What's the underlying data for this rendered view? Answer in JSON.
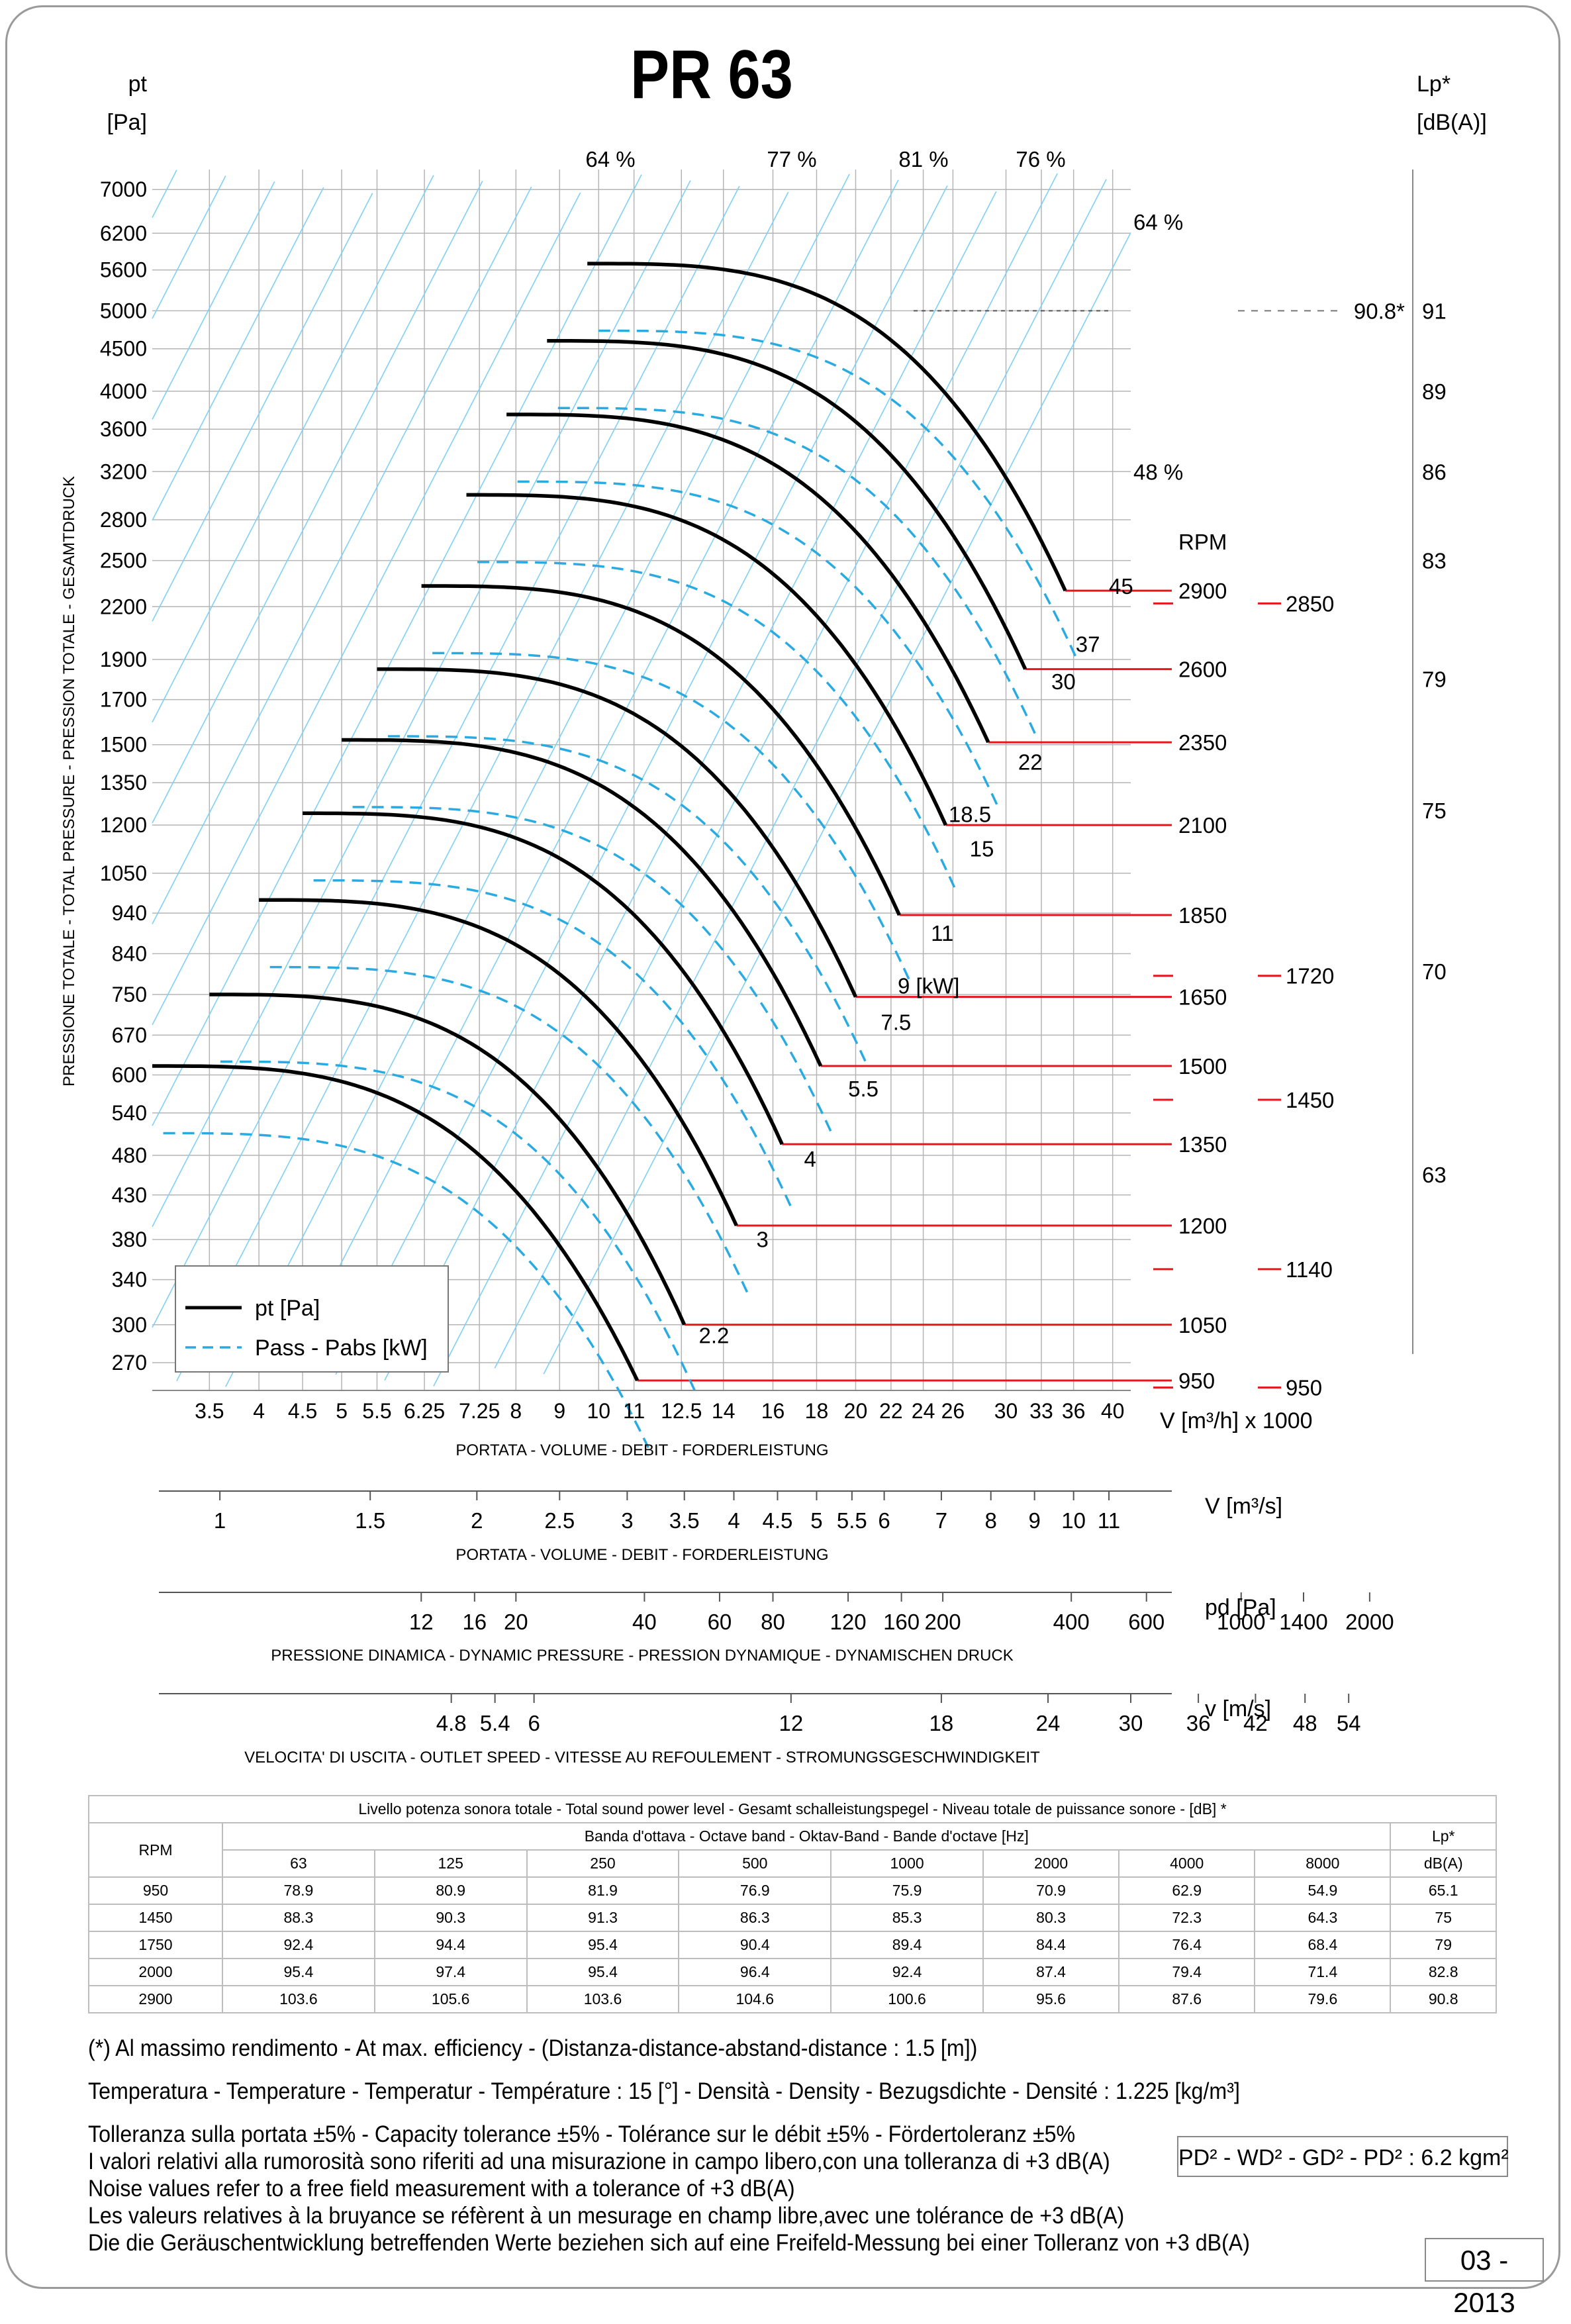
{
  "title": "PR 63",
  "chart_data": {
    "type": "line",
    "title": "PR 63",
    "ylabel_unit": "pt\n[Pa]",
    "ylabel_side": "PRESSIONE TOTALE - TOTAL PRESSURE - PRESSION TOTALE - GESAMTDRUCK",
    "right_unit": "Lp*\n[dB(A)]",
    "x_unit": "V [m³/h]  x 1000",
    "x_caption": "PORTATA - VOLUME - DEBIT - FORDERLEISTUNG",
    "y_scale": "log",
    "x_scale": "log",
    "xlim": [
      3.0,
      42
    ],
    "ylim": [
      250,
      7400
    ],
    "y_ticks": [
      270,
      300,
      340,
      380,
      430,
      480,
      540,
      600,
      670,
      750,
      840,
      940,
      1050,
      1200,
      1350,
      1500,
      1700,
      1900,
      2200,
      2500,
      2800,
      3200,
      3600,
      4000,
      4500,
      5000,
      5600,
      6200,
      7000
    ],
    "x_ticks": [
      "3.5",
      "4",
      "4.5",
      "5",
      "5.5",
      "6.25",
      "7.25",
      "8",
      "9",
      "10",
      "11",
      "12.5",
      "14",
      "16",
      "18",
      "20",
      "22",
      "24",
      "26",
      "30",
      "33",
      "36",
      "40"
    ],
    "lp_ticks": [
      {
        "pt": 5000,
        "label": "91"
      },
      {
        "pt": 4000,
        "label": "89"
      },
      {
        "pt": 3200,
        "label": "86"
      },
      {
        "pt": 2500,
        "label": "83"
      },
      {
        "pt": 1800,
        "label": "79"
      },
      {
        "pt": 1250,
        "label": "75"
      },
      {
        "pt": 800,
        "label": "70"
      },
      {
        "pt": 455,
        "label": "63"
      }
    ],
    "lp_marker": {
      "pt": 5000,
      "label": "90.8*"
    },
    "efficiency_labels_top": [
      "64 %",
      "77 %",
      "81 %",
      "76 %"
    ],
    "efficiency_labels_right": [
      {
        "pt": 6400,
        "label": "64 %"
      },
      {
        "pt": 3200,
        "label": "48 %"
      }
    ],
    "grid": true,
    "legend": {
      "position": "bottom-left",
      "entries": [
        "pt [Pa]",
        "Pass - Pabs [kW]"
      ]
    },
    "rpm_title": "RPM",
    "rpm_curves": [
      {
        "rpm": "950",
        "shutoff": [
          3.0,
          615
        ],
        "max": [
          11.1,
          257
        ]
      },
      {
        "rpm": "1050",
        "shutoff": [
          3.5,
          750
        ],
        "max": [
          12.6,
          300
        ]
      },
      {
        "rpm": "1200",
        "shutoff": [
          4.0,
          975
        ],
        "max": [
          14.5,
          395
        ]
      },
      {
        "rpm": "1350",
        "shutoff": [
          4.5,
          1240
        ],
        "max": [
          16.4,
          495
        ]
      },
      {
        "rpm": "1500",
        "shutoff": [
          5.0,
          1520
        ],
        "max": [
          18.2,
          615
        ]
      },
      {
        "rpm": "1650",
        "shutoff": [
          5.5,
          1850
        ],
        "max": [
          20.0,
          745
        ]
      },
      {
        "rpm": "1850",
        "shutoff": [
          6.2,
          2330
        ],
        "max": [
          22.5,
          935
        ]
      },
      {
        "rpm": "2100",
        "shutoff": [
          7.0,
          3000
        ],
        "max": [
          25.5,
          1200
        ]
      },
      {
        "rpm": "2350",
        "shutoff": [
          7.8,
          3750
        ],
        "max": [
          28.6,
          1510
        ]
      },
      {
        "rpm": "2600",
        "shutoff": [
          8.7,
          4600
        ],
        "max": [
          31.6,
          1850
        ]
      },
      {
        "rpm": "2900",
        "shutoff": [
          9.7,
          5700
        ],
        "max": [
          35.2,
          2300
        ]
      }
    ],
    "rpm_extra_labels": [
      {
        "pt": 2220,
        "label": "2850"
      },
      {
        "pt": 790,
        "label": "1720"
      },
      {
        "pt": 560,
        "label": "1450"
      },
      {
        "pt": 350,
        "label": "1140"
      },
      {
        "pt": 252,
        "label": "950"
      }
    ],
    "power_labels": [
      {
        "label": "2.2",
        "x": 13.1,
        "y": 285
      },
      {
        "label": "3",
        "x": 15.3,
        "y": 372
      },
      {
        "label": "4",
        "x": 17.4,
        "y": 465
      },
      {
        "label": "5.5",
        "x": 19.6,
        "y": 565
      },
      {
        "label": "7.5",
        "x": 21.4,
        "y": 680
      },
      {
        "label": "9  [kW]",
        "x": 22.4,
        "y": 752
      },
      {
        "label": "11",
        "x": 24.5,
        "y": 870
      },
      {
        "label": "15",
        "x": 27.2,
        "y": 1100
      },
      {
        "label": "18.5",
        "x": 25.7,
        "y": 1210
      },
      {
        "label": "22",
        "x": 31.0,
        "y": 1400
      },
      {
        "label": "30",
        "x": 33.9,
        "y": 1750
      },
      {
        "label": "37",
        "x": 36.2,
        "y": 1940
      },
      {
        "label": "45",
        "x": 39.6,
        "y": 2280
      }
    ],
    "v_ms_axis": {
      "label": "V  [m³/s]",
      "ticks": [
        "1",
        "1.5",
        "2",
        "2.5",
        "3",
        "3.5",
        "4",
        "4.5",
        "5",
        "5.5",
        "6",
        "7",
        "8",
        "9",
        "10",
        "11"
      ]
    },
    "pd_axis": {
      "label": "pd  [Pa]",
      "caption": "PRESSIONE DINAMICA - DYNAMIC PRESSURE - PRESSION DYNAMIQUE - DYNAMISCHEN DRUCK",
      "ticks": [
        "12",
        "16",
        "20",
        "40",
        "60",
        "80",
        "120",
        "160",
        "200",
        "400",
        "600",
        "1000",
        "1400",
        "2000"
      ]
    },
    "vel_axis": {
      "label": "v  [m/s]",
      "caption": "VELOCITA' DI USCITA - OUTLET SPEED - VITESSE AU REFOULEMENT - STROMUNGSGESCHWINDIGKEIT",
      "ticks": [
        "4.8",
        "5.4",
        "6",
        "12",
        "18",
        "24",
        "30",
        "36",
        "42",
        "48",
        "54"
      ]
    },
    "v_ms_caption": "PORTATA - VOLUME - DEBIT - FORDERLEISTUNG"
  },
  "noise_table": {
    "title": "Livello potenza sonora totale - Total sound power level - Gesamt schalleistungspegel - Niveau totale de puissance sonore - [dB]   *",
    "band_title": "Banda d'ottava - Octave band - Oktav-Band - Bande d'octave [Hz]",
    "rpm_header": "RPM",
    "lp_header": "Lp*",
    "lp_unit": "dB(A)",
    "bands": [
      "63",
      "125",
      "250",
      "500",
      "1000",
      "2000",
      "4000",
      "8000"
    ],
    "rows": [
      {
        "rpm": "950",
        "values": [
          "78.9",
          "80.9",
          "81.9",
          "76.9",
          "75.9",
          "70.9",
          "62.9",
          "54.9"
        ],
        "lp": "65.1"
      },
      {
        "rpm": "1450",
        "values": [
          "88.3",
          "90.3",
          "91.3",
          "86.3",
          "85.3",
          "80.3",
          "72.3",
          "64.3"
        ],
        "lp": "75"
      },
      {
        "rpm": "1750",
        "values": [
          "92.4",
          "94.4",
          "95.4",
          "90.4",
          "89.4",
          "84.4",
          "76.4",
          "68.4"
        ],
        "lp": "79"
      },
      {
        "rpm": "2000",
        "values": [
          "95.4",
          "97.4",
          "95.4",
          "96.4",
          "92.4",
          "87.4",
          "79.4",
          "71.4"
        ],
        "lp": "82.8"
      },
      {
        "rpm": "2900",
        "values": [
          "103.6",
          "105.6",
          "103.6",
          "104.6",
          "100.6",
          "95.6",
          "87.6",
          "79.6"
        ],
        "lp": "90.8"
      }
    ]
  },
  "notes": [
    "(*) Al massimo rendimento - At max. efficiency - (Distanza-distance-abstand-distance : 1.5 [m])",
    "Temperatura - Temperature - Temperatur - Température : 15 [°]  -  Densità - Density - Bezugsdichte - Densité : 1.225 [kg/m³]",
    "Tolleranza sulla portata  ±5% - Capacity tolerance ±5% - Tolérance sur le débit ±5% - Fördertoleranz ±5%",
    "I valori relativi alla rumorosità sono riferiti ad una misurazione in campo libero,con una tolleranza di +3 dB(A)",
    "Noise values refer to a free field measurement with a tolerance of +3 dB(A)",
    "Les valeurs relatives à la bruyance se réfèrent à un mesurage en champ libre,avec une tolérance de +3 dB(A)",
    "Die die Geräuschentwicklung betreffenden Werte beziehen sich auf eine Freifeld-Messung bei einer Tolleranz von +3 dB(A)"
  ],
  "pd2_label": "PD² -  WD² - GD² -  PD²  :  6.2 kgm²",
  "date_label": "03 - 2013",
  "colors": {
    "curve": "#000000",
    "power": "#29abe2",
    "grid": "#b5b5b5",
    "diag": "#7fd0f2",
    "rpm_line": "#e8141b",
    "frame": "#9a9a9a"
  }
}
